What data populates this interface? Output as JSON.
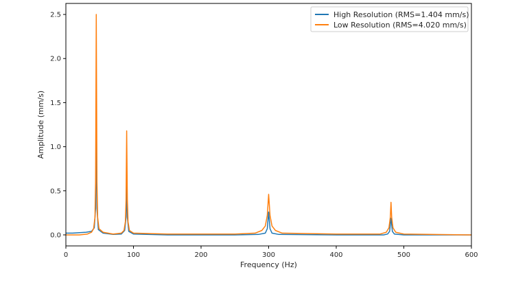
{
  "chart_data": {
    "type": "line",
    "title": "",
    "xlabel": "Frequency (Hz)",
    "ylabel": "Amplitude (mm/s)",
    "xlim": [
      0,
      600
    ],
    "ylim": [
      -0.125,
      2.625
    ],
    "xticks": [
      0,
      100,
      200,
      300,
      400,
      500,
      600
    ],
    "yticks": [
      0.0,
      0.5,
      1.0,
      1.5,
      2.0,
      2.5
    ],
    "xtick_labels": [
      "0",
      "100",
      "200",
      "300",
      "400",
      "500",
      "600"
    ],
    "ytick_labels": [
      "0.0",
      "0.5",
      "1.0",
      "1.5",
      "2.0",
      "2.5"
    ],
    "grid": false,
    "legend_position": "top-right",
    "series": [
      {
        "name": "High Resolution (RMS=1.404 mm/s)",
        "color": "#1f77b4",
        "points": [
          [
            0,
            0.02
          ],
          [
            10,
            0.02
          ],
          [
            20,
            0.025
          ],
          [
            30,
            0.03
          ],
          [
            38,
            0.04
          ],
          [
            42,
            0.08
          ],
          [
            44,
            0.3
          ],
          [
            45,
            1.21
          ],
          [
            46,
            0.3
          ],
          [
            48,
            0.06
          ],
          [
            55,
            0.02
          ],
          [
            70,
            0.005
          ],
          [
            82,
            0.01
          ],
          [
            87,
            0.05
          ],
          [
            89,
            0.2
          ],
          [
            90,
            0.56
          ],
          [
            91,
            0.2
          ],
          [
            93,
            0.04
          ],
          [
            100,
            0.01
          ],
          [
            150,
            0.0
          ],
          [
            250,
            0.0
          ],
          [
            285,
            0.005
          ],
          [
            295,
            0.02
          ],
          [
            298,
            0.07
          ],
          [
            300,
            0.26
          ],
          [
            302,
            0.07
          ],
          [
            305,
            0.02
          ],
          [
            315,
            0.005
          ],
          [
            400,
            0.0
          ],
          [
            470,
            0.0
          ],
          [
            476,
            0.01
          ],
          [
            479,
            0.04
          ],
          [
            481,
            0.19
          ],
          [
            483,
            0.04
          ],
          [
            486,
            0.01
          ],
          [
            500,
            0.0
          ],
          [
            600,
            0.0
          ]
        ]
      },
      {
        "name": "Low Resolution (RMS=4.020 mm/s)",
        "color": "#ff7f0e",
        "points": [
          [
            0,
            0.0
          ],
          [
            20,
            0.0
          ],
          [
            32,
            0.01
          ],
          [
            38,
            0.03
          ],
          [
            41,
            0.07
          ],
          [
            43,
            0.2
          ],
          [
            44,
            0.6
          ],
          [
            45,
            2.5
          ],
          [
            46,
            0.6
          ],
          [
            47,
            0.2
          ],
          [
            49,
            0.07
          ],
          [
            55,
            0.03
          ],
          [
            70,
            0.01
          ],
          [
            82,
            0.02
          ],
          [
            86,
            0.05
          ],
          [
            88,
            0.15
          ],
          [
            89,
            0.4
          ],
          [
            90,
            1.18
          ],
          [
            91,
            0.4
          ],
          [
            92,
            0.15
          ],
          [
            94,
            0.05
          ],
          [
            100,
            0.02
          ],
          [
            150,
            0.01
          ],
          [
            250,
            0.01
          ],
          [
            280,
            0.02
          ],
          [
            290,
            0.05
          ],
          [
            295,
            0.1
          ],
          [
            298,
            0.22
          ],
          [
            300,
            0.46
          ],
          [
            302,
            0.22
          ],
          [
            305,
            0.1
          ],
          [
            310,
            0.05
          ],
          [
            320,
            0.02
          ],
          [
            400,
            0.01
          ],
          [
            465,
            0.01
          ],
          [
            474,
            0.03
          ],
          [
            478,
            0.08
          ],
          [
            480,
            0.2
          ],
          [
            481,
            0.37
          ],
          [
            482,
            0.2
          ],
          [
            484,
            0.08
          ],
          [
            488,
            0.03
          ],
          [
            500,
            0.01
          ],
          [
            600,
            0.0
          ]
        ]
      }
    ]
  }
}
